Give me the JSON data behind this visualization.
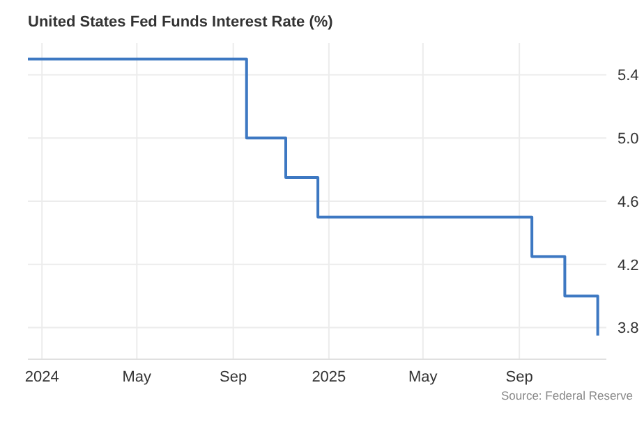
{
  "chart_data": {
    "type": "step",
    "title": "United States Fed Funds Interest Rate (%)",
    "x": [
      "2023-12-14",
      "2024-09-18",
      "2024-11-07",
      "2024-12-18",
      "2025-09-17",
      "2025-10-29",
      "2025-12-10"
    ],
    "series": [
      {
        "color": "#3d78c2",
        "values": [
          5.5,
          5.0,
          4.75,
          4.5,
          4.25,
          4.0,
          3.75
        ]
      }
    ],
    "xlim": [
      "2023-12-14",
      "2025-12-21"
    ],
    "xticks": [
      {
        "value": "2024-01-01",
        "label": "2024"
      },
      {
        "value": "2024-05-01",
        "label": "May"
      },
      {
        "value": "2024-09-01",
        "label": "Sep"
      },
      {
        "value": "2025-01-01",
        "label": "2025"
      },
      {
        "value": "2025-05-01",
        "label": "May"
      },
      {
        "value": "2025-09-01",
        "label": "Sep"
      }
    ],
    "ylim": [
      3.6,
      5.6
    ],
    "yticks": [
      {
        "value": 3.8,
        "label": "3.8"
      },
      {
        "value": 4.2,
        "label": "4.2"
      },
      {
        "value": 4.6,
        "label": "4.6"
      },
      {
        "value": 5.0,
        "label": "5.0"
      },
      {
        "value": 5.4,
        "label": "5.4"
      }
    ],
    "grid": true,
    "legend": false,
    "annotations": [
      "Source: Federal Reserve"
    ]
  }
}
